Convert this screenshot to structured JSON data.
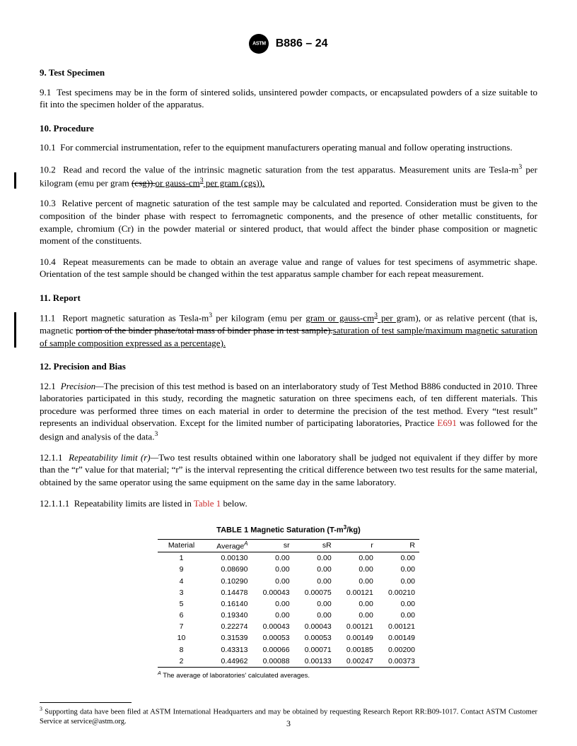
{
  "header": {
    "designation": "B886 – 24"
  },
  "sections": {
    "s9": {
      "num": "9.",
      "title": "Test Specimen"
    },
    "s9_1": {
      "num": "9.1",
      "text": "Test specimens may be in the form of sintered solids, unsintered powder compacts, or encapsulated powders of a size suitable to fit into the specimen holder of the apparatus."
    },
    "s10": {
      "num": "10.",
      "title": "Procedure"
    },
    "s10_1": {
      "num": "10.1",
      "text": "For commercial instrumentation, refer to the equipment manufacturers operating manual and follow operating instructions."
    },
    "s10_2": {
      "num": "10.2",
      "pre": "Read and record the value of the intrinsic magnetic saturation from the test apparatus. Measurement units are Tesla-m",
      "mid": " per kilogram (emu per gram ",
      "strike": "(csg)).",
      "ins": "or gauss-cm",
      "ins2": " per gram (cgs))."
    },
    "s10_3": {
      "num": "10.3",
      "text": "Relative percent of magnetic saturation of the test sample may be calculated and reported. Consideration must be given to the composition of the binder phase with respect to ferromagnetic components, and the presence of other metallic constituents, for example, chromium (Cr) in the powder material or sintered product, that would affect the binder phase composition or magnetic moment of the constituents."
    },
    "s10_4": {
      "num": "10.4",
      "text": "Repeat measurements can be made to obtain an average value and range of values for test specimens of asymmetric shape. Orientation of the test sample should be changed within the test apparatus sample chamber for each repeat measurement."
    },
    "s11": {
      "num": "11.",
      "title": "Report"
    },
    "s11_1": {
      "num": "11.1",
      "pre": "Report magnetic saturation as Tesla-m",
      "mid1": " per kilogram (emu per ",
      "ins1": "gram or gauss-cm",
      "ins2": " per g",
      "mid2": "ram), or as relative percent (that is, magnetic ",
      "strike": "portion of the binder phase/total mass of binder phase in test sample).",
      "ins3": "saturation of test sample/maximum magnetic saturation of sample composition expressed as a percentage)."
    },
    "s12": {
      "num": "12.",
      "title": "Precision and Bias"
    },
    "s12_1": {
      "num": "12.1",
      "label": "Precision—",
      "text": "The precision of this test method is based on an interlaboratory study of Test Method B886 conducted in 2010. Three laboratories participated in this study, recording the magnetic saturation on three specimens each, of ten different materials. This procedure was performed three times on each material in order to determine the precision of the test method. Every “test result” represents an individual observation. Except for the limited number of participating laboratories, Practice ",
      "link": "E691",
      "tail": " was followed for the design and analysis of the data."
    },
    "s12_1_1": {
      "num": "12.1.1",
      "label": "Repeatability limit (r)—",
      "text": "Two test results obtained within one laboratory shall be judged not equivalent if they differ by more than the “r” value for that material; “r” is the interval representing the critical difference between two test results for the same material, obtained by the same operator using the same equipment on the same day in the same laboratory."
    },
    "s12_1_1_1": {
      "num": "12.1.1.1",
      "pre": "Repeatability limits are listed in ",
      "link": "Table 1",
      "post": " below."
    }
  },
  "table": {
    "title_pre": "TABLE 1 Magnetic Saturation (T-m",
    "title_post": "/kg)",
    "columns": [
      "Material",
      "Average",
      "sr",
      "sR",
      "r",
      "R"
    ],
    "avg_sup": "A",
    "rows": [
      [
        "1",
        "0.00130",
        "0.00",
        "0.00",
        "0.00",
        "0.00"
      ],
      [
        "9",
        "0.08690",
        "0.00",
        "0.00",
        "0.00",
        "0.00"
      ],
      [
        "4",
        "0.10290",
        "0.00",
        "0.00",
        "0.00",
        "0.00"
      ],
      [
        "3",
        "0.14478",
        "0.00043",
        "0.00075",
        "0.00121",
        "0.00210"
      ],
      [
        "5",
        "0.16140",
        "0.00",
        "0.00",
        "0.00",
        "0.00"
      ],
      [
        "6",
        "0.19340",
        "0.00",
        "0.00",
        "0.00",
        "0.00"
      ],
      [
        "7",
        "0.22274",
        "0.00043",
        "0.00043",
        "0.00121",
        "0.00121"
      ],
      [
        "10",
        "0.31539",
        "0.00053",
        "0.00053",
        "0.00149",
        "0.00149"
      ],
      [
        "8",
        "0.43313",
        "0.00066",
        "0.00071",
        "0.00185",
        "0.00200"
      ],
      [
        "2",
        "0.44962",
        "0.00088",
        "0.00133",
        "0.00247",
        "0.00373"
      ]
    ],
    "footnote_sup": "A",
    "footnote": " The average of laboratories' calculated averages."
  },
  "footnote3": {
    "sup": "3",
    "text": " Supporting data have been filed at ASTM International Headquarters and may be obtained by requesting Research Report RR:B09-1017. Contact ASTM Customer Service at service@astm.org."
  },
  "page_number": "3"
}
